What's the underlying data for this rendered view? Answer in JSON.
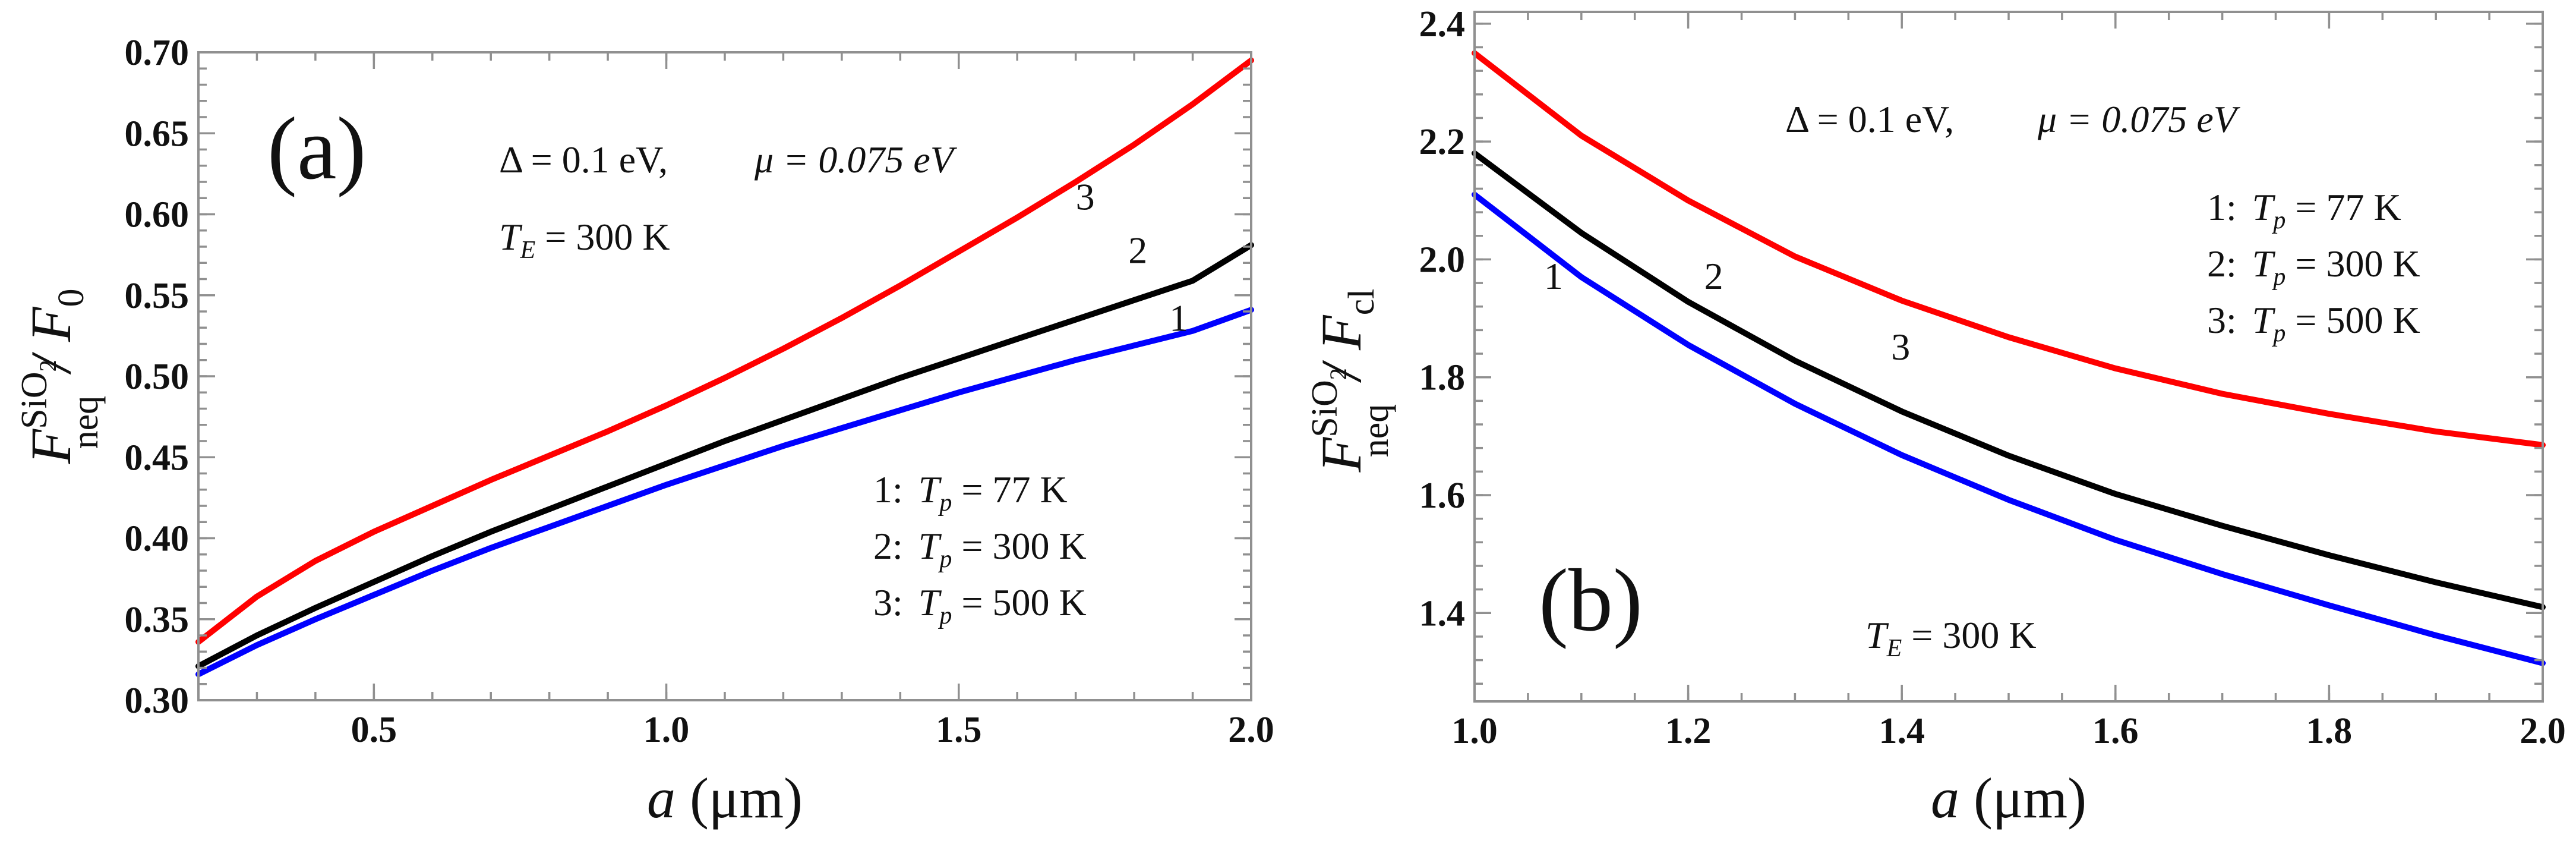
{
  "colors": {
    "series_1": "#0000ff",
    "series_2": "#000000",
    "series_3": "#ff0000"
  },
  "chart_data": [
    {
      "type": "line",
      "panel_label": "(a)",
      "xlabel_var": "a",
      "xlabel_unit": " (μm)",
      "ylabel": {
        "main": "F",
        "sub": "neq",
        "sup": "SiO",
        "sup_sub": "2",
        "denom": "/ F",
        "denom_sub": "0"
      },
      "xlim": [
        0.2,
        2.0
      ],
      "ylim": [
        0.3,
        0.7
      ],
      "xticks": [
        0.5,
        1.0,
        1.5,
        2.0
      ],
      "xtick_labels": [
        "0.5",
        "1.0",
        "1.5",
        "2.0"
      ],
      "yticks": [
        0.3,
        0.35,
        0.4,
        0.45,
        0.5,
        0.55,
        0.6,
        0.65,
        0.7
      ],
      "ytick_labels": [
        "0.30",
        "0.35",
        "0.40",
        "0.45",
        "0.50",
        "0.55",
        "0.60",
        "0.65",
        "0.70"
      ],
      "annotations": {
        "params_delta": "Δ = 0.1 eV,",
        "params_mu": "μ = 0.075 eV",
        "te": {
          "var": "T",
          "sub": "E",
          "rest": " = 300 K"
        },
        "legend": [
          {
            "num": "1:",
            "var": "T",
            "sub": "p",
            "rest": " = 77 K"
          },
          {
            "num": "2:",
            "var": "T",
            "sub": "p",
            "rest": " = 300 K"
          },
          {
            "num": "3:",
            "var": "T",
            "sub": "p",
            "rest": " = 500 K"
          }
        ]
      },
      "series": [
        {
          "name": "1",
          "label": "1",
          "color_key": "series_1",
          "label_at": [
            1.86,
            0.528
          ],
          "x": [
            0.2,
            0.3,
            0.4,
            0.5,
            0.6,
            0.7,
            0.8,
            0.9,
            1.0,
            1.1,
            1.2,
            1.3,
            1.4,
            1.5,
            1.6,
            1.7,
            1.8,
            1.9,
            2.0
          ],
          "y": [
            0.316,
            0.334,
            0.35,
            0.365,
            0.38,
            0.394,
            0.407,
            0.42,
            0.433,
            0.445,
            0.457,
            0.468,
            0.479,
            0.49,
            0.5,
            0.51,
            0.519,
            0.528,
            0.541
          ]
        },
        {
          "name": "2",
          "label": "2",
          "color_key": "series_2",
          "label_at": [
            1.79,
            0.57
          ],
          "x": [
            0.2,
            0.3,
            0.4,
            0.5,
            0.6,
            0.7,
            0.8,
            0.9,
            1.0,
            1.1,
            1.2,
            1.3,
            1.4,
            1.5,
            1.6,
            1.7,
            1.8,
            1.9,
            2.0
          ],
          "y": [
            0.321,
            0.34,
            0.357,
            0.373,
            0.389,
            0.404,
            0.418,
            0.432,
            0.446,
            0.46,
            0.473,
            0.486,
            0.499,
            0.511,
            0.523,
            0.535,
            0.547,
            0.559,
            0.581
          ]
        },
        {
          "name": "3",
          "label": "3",
          "color_key": "series_3",
          "label_at": [
            1.7,
            0.603
          ],
          "x": [
            0.2,
            0.3,
            0.4,
            0.5,
            0.6,
            0.7,
            0.8,
            0.9,
            1.0,
            1.1,
            1.2,
            1.3,
            1.4,
            1.5,
            1.6,
            1.7,
            1.8,
            1.9,
            2.0
          ],
          "y": [
            0.336,
            0.364,
            0.386,
            0.404,
            0.42,
            0.436,
            0.451,
            0.466,
            0.482,
            0.499,
            0.517,
            0.536,
            0.556,
            0.577,
            0.598,
            0.62,
            0.643,
            0.668,
            0.695
          ]
        }
      ]
    },
    {
      "type": "line",
      "panel_label": "(b)",
      "xlabel_var": "a",
      "xlabel_unit": " (μm)",
      "ylabel": {
        "main": "F",
        "sub": "neq",
        "sup": "SiO",
        "sup_sub": "2",
        "denom": "/ F",
        "denom_sub": "cl"
      },
      "xlim": [
        1.0,
        2.0
      ],
      "ylim": [
        1.25,
        2.42
      ],
      "xticks": [
        1.0,
        1.2,
        1.4,
        1.6,
        1.8,
        2.0
      ],
      "xtick_labels": [
        "1.0",
        "1.2",
        "1.4",
        "1.6",
        "1.8",
        "2.0"
      ],
      "yticks": [
        1.4,
        1.6,
        1.8,
        2.0,
        2.2,
        2.4
      ],
      "ytick_labels": [
        "1.4",
        "1.6",
        "1.8",
        "2.0",
        "2.2",
        "2.4"
      ],
      "annotations": {
        "params_delta": "Δ = 0.1 eV,",
        "params_mu": "μ = 0.075 eV",
        "te": {
          "var": "T",
          "sub": "E",
          "rest": " = 300 K"
        },
        "legend": [
          {
            "num": "1:",
            "var": "T",
            "sub": "p",
            "rest": " = 77 K"
          },
          {
            "num": "2:",
            "var": "T",
            "sub": "p",
            "rest": " = 300 K"
          },
          {
            "num": "3:",
            "var": "T",
            "sub": "p",
            "rest": " = 500 K"
          }
        ]
      },
      "series": [
        {
          "name": "1",
          "label": "1",
          "color_key": "series_1",
          "label_at": [
            1.065,
            1.95
          ],
          "x": [
            1.0,
            1.1,
            1.2,
            1.3,
            1.4,
            1.5,
            1.6,
            1.7,
            1.8,
            1.9,
            2.0
          ],
          "y": [
            2.11,
            1.97,
            1.855,
            1.755,
            1.668,
            1.592,
            1.524,
            1.466,
            1.413,
            1.362,
            1.315
          ]
        },
        {
          "name": "2",
          "label": "2",
          "color_key": "series_2",
          "label_at": [
            1.215,
            1.95
          ],
          "x": [
            1.0,
            1.1,
            1.2,
            1.3,
            1.4,
            1.5,
            1.6,
            1.7,
            1.8,
            1.9,
            2.0
          ],
          "y": [
            2.18,
            2.045,
            1.928,
            1.828,
            1.742,
            1.667,
            1.602,
            1.548,
            1.498,
            1.452,
            1.41
          ]
        },
        {
          "name": "3",
          "label": "3",
          "color_key": "series_3",
          "label_at": [
            1.39,
            1.83
          ],
          "x": [
            1.0,
            1.1,
            1.2,
            1.3,
            1.4,
            1.5,
            1.6,
            1.7,
            1.8,
            1.9,
            2.0
          ],
          "y": [
            2.35,
            2.21,
            2.1,
            2.005,
            1.93,
            1.868,
            1.815,
            1.772,
            1.738,
            1.708,
            1.685
          ]
        }
      ]
    }
  ]
}
